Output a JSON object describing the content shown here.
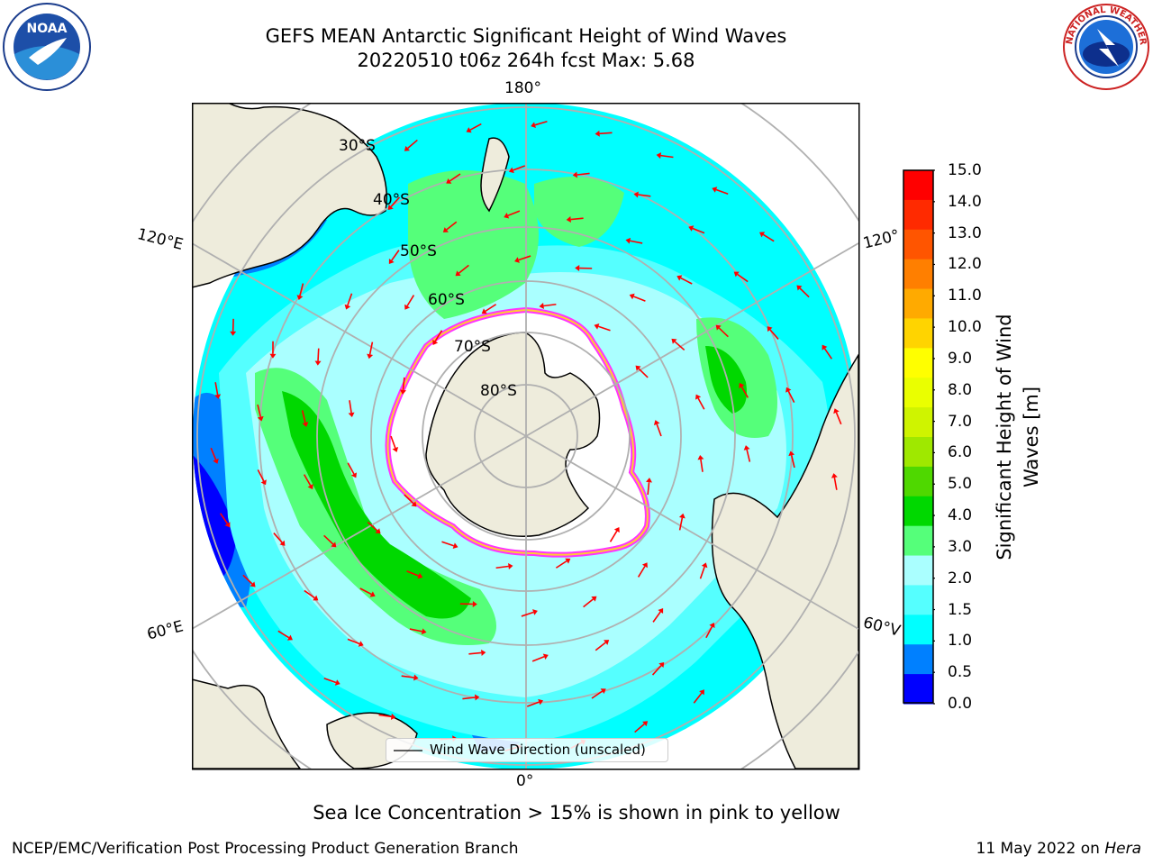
{
  "header": {
    "title_line1": "GEFS MEAN Antarctic Significant Height of Wind Waves",
    "title_line2": "20220510 t06z 264h fcst   Max: 5.68"
  },
  "map": {
    "projection": "south-polar-stereographic",
    "longitude_labels": {
      "top": "180°",
      "bottom": "0°",
      "left_upper": "120°E",
      "left_lower": "60°E",
      "right_upper": "120°",
      "right_lower": "60°V"
    },
    "latitude_labels": [
      "30°S",
      "40°S",
      "50°S",
      "60°S",
      "70°S",
      "80°S"
    ],
    "legend_label": "Wind Wave Direction (unscaled)",
    "arrow_color": "#ff0000",
    "land_color": "#eeecdc",
    "ice_colors": [
      "#ff33ff",
      "#ffcc33"
    ]
  },
  "colorbar": {
    "title_line1": "Significant Height of Wind",
    "title_line2": "Waves [m]",
    "ticks": [
      "15.0",
      "14.0",
      "13.0",
      "12.0",
      "11.0",
      "10.0",
      "9.0",
      "8.0",
      "7.0",
      "6.0",
      "5.0",
      "4.0",
      "3.0",
      "2.0",
      "1.5",
      "1.0",
      "0.5",
      "0.0"
    ],
    "colors": [
      "#ff0000",
      "#ff2a00",
      "#ff5500",
      "#ff7f00",
      "#ffaa00",
      "#ffd400",
      "#ffff00",
      "#eaff00",
      "#cff400",
      "#9fe800",
      "#4fd800",
      "#00d800",
      "#55ff7a",
      "#aaffff",
      "#55ffff",
      "#00ffff",
      "#0080ff",
      "#0000ff"
    ]
  },
  "logos": {
    "noaa_text": "NOAA",
    "nws_text": "NATIONAL WEATHER SERVICE"
  },
  "footer": {
    "ice_note": "Sea Ice Concentration > 15% is shown in pink to yellow",
    "credit_left": "NCEP/EMC/Verification Post Processing Product Generation Branch",
    "date_text": "11 May 2022 on ",
    "host": "Hera"
  }
}
